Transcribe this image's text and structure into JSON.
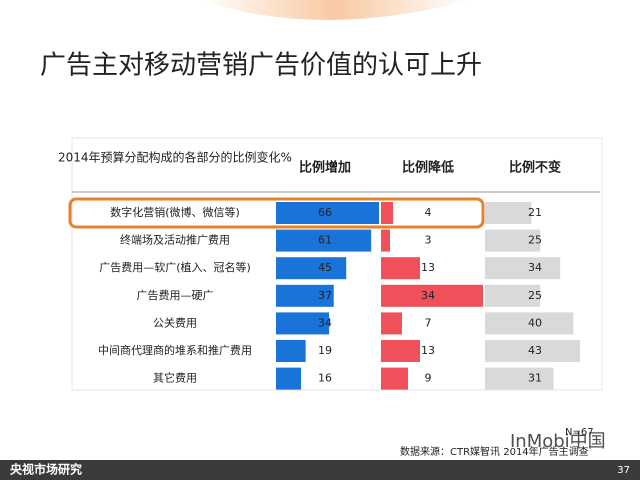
{
  "title": "广告主对移动营销广告价值的认可上升",
  "chart_data": {
    "type": "bar",
    "header": "2014年预算分配构成的各部分的比例变化%",
    "categories": [
      "数字化营销(微博、微信等)",
      "终端场及活动推广费用",
      "广告费用—软广(植入、冠名等)",
      "广告费用—硬广",
      "公关费用",
      "中间商代理商的堆系和推广费用",
      "其它费用"
    ],
    "series": [
      {
        "name": "比例增加",
        "color": "#1a73d9",
        "values": [
          66,
          61,
          45,
          37,
          34,
          19,
          16
        ],
        "xlim": [
          0,
          66
        ]
      },
      {
        "name": "比例降低",
        "color": "#f0505a",
        "values": [
          4,
          3,
          13,
          34,
          7,
          13,
          9
        ],
        "xlim": [
          0,
          34
        ]
      },
      {
        "name": "比例不变",
        "color": "#d9d9d9",
        "values": [
          21,
          25,
          34,
          25,
          40,
          43,
          31
        ],
        "xlim": [
          0,
          43
        ]
      }
    ],
    "highlight_color": "#e8822a"
  },
  "note": "N=67",
  "source": "数据来源：CTR媒智讯  2014年广告主调查",
  "watermark": "InMobi中国",
  "footer": {
    "brand": "央视市场研究",
    "page": "37"
  }
}
